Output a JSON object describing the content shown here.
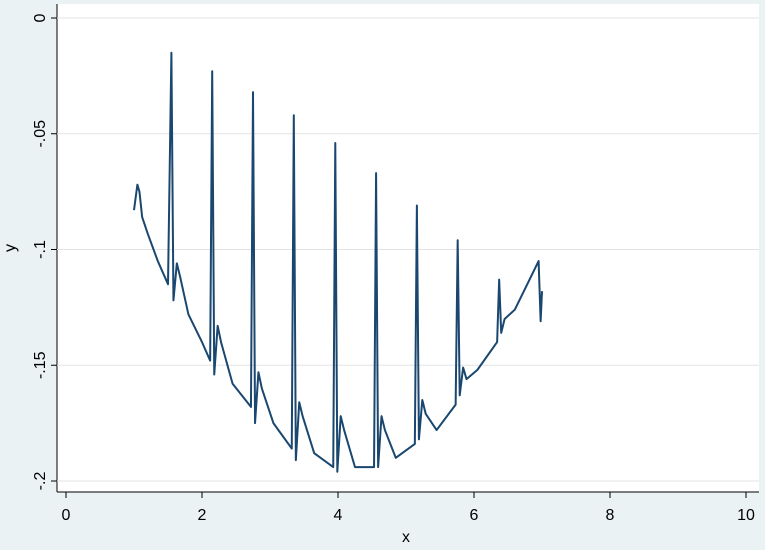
{
  "chart_data": {
    "type": "line",
    "x_label": "x",
    "y_label": "y",
    "x": [
      1.0,
      1.05,
      1.08,
      1.12,
      1.2,
      1.35,
      1.5,
      1.55,
      1.58,
      1.63,
      1.68,
      1.8,
      2.0,
      2.12,
      2.15,
      2.18,
      2.23,
      2.28,
      2.45,
      2.72,
      2.75,
      2.78,
      2.83,
      2.88,
      3.05,
      3.32,
      3.35,
      3.38,
      3.43,
      3.48,
      3.65,
      3.93,
      3.96,
      3.99,
      4.04,
      4.09,
      4.25,
      4.53,
      4.56,
      4.59,
      4.64,
      4.69,
      4.85,
      5.13,
      5.16,
      5.19,
      5.24,
      5.29,
      5.45,
      5.73,
      5.76,
      5.79,
      5.84,
      5.89,
      6.05,
      6.34,
      6.37,
      6.4,
      6.45,
      6.6,
      6.8,
      6.95,
      6.98,
      7.0
    ],
    "series": [
      {
        "color": "#1a476f",
        "values": [
          -0.083,
          -0.072,
          -0.075,
          -0.086,
          -0.093,
          -0.105,
          -0.115,
          -0.015,
          -0.122,
          -0.106,
          -0.112,
          -0.128,
          -0.14,
          -0.148,
          -0.023,
          -0.154,
          -0.133,
          -0.14,
          -0.158,
          -0.168,
          -0.032,
          -0.175,
          -0.153,
          -0.16,
          -0.175,
          -0.186,
          -0.042,
          -0.191,
          -0.166,
          -0.172,
          -0.188,
          -0.194,
          -0.054,
          -0.196,
          -0.172,
          -0.178,
          -0.194,
          -0.194,
          -0.067,
          -0.194,
          -0.172,
          -0.178,
          -0.19,
          -0.184,
          -0.081,
          -0.182,
          -0.165,
          -0.171,
          -0.178,
          -0.167,
          -0.096,
          -0.163,
          -0.151,
          -0.156,
          -0.152,
          -0.14,
          -0.113,
          -0.136,
          -0.13,
          -0.126,
          -0.114,
          -0.105,
          -0.131,
          -0.118
        ]
      }
    ],
    "xlim": [
      0,
      10
    ],
    "xticks": [
      0,
      2,
      4,
      6,
      8,
      10
    ],
    "ylim": [
      -0.2,
      0
    ],
    "yticks": [
      {
        "value": -0.2,
        "label": "-.2"
      },
      {
        "value": -0.15,
        "label": "-.15"
      },
      {
        "value": -0.1,
        "label": "-.1"
      },
      {
        "value": -0.05,
        "label": "-.05"
      },
      0
    ],
    "grid": true
  }
}
